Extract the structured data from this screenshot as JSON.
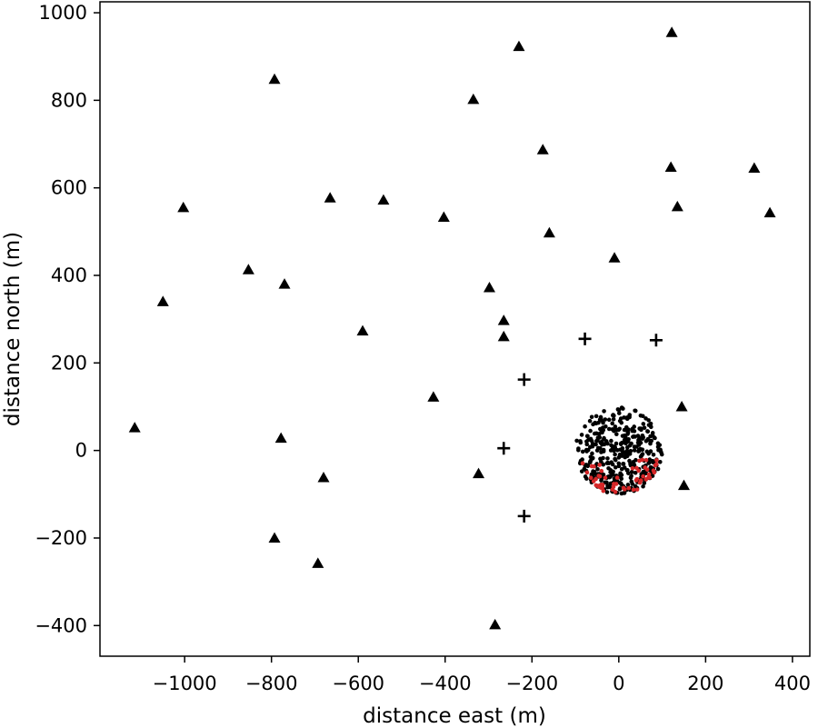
{
  "chart_data": {
    "type": "scatter",
    "title": "",
    "xlabel": "distance east (m)",
    "ylabel": "distance north (m)",
    "xlim": [
      -1195,
      440
    ],
    "ylim": [
      -470,
      1025
    ],
    "xticks": [
      -1000,
      -800,
      -600,
      -400,
      -200,
      0,
      200,
      400
    ],
    "yticks": [
      -400,
      -200,
      0,
      200,
      400,
      600,
      800,
      1000
    ],
    "xtick_labels": [
      "−1000",
      "−800",
      "−600",
      "−400",
      "−200",
      "0",
      "200",
      "400"
    ],
    "ytick_labels": [
      "−400",
      "−200",
      "0",
      "200",
      "400",
      "600",
      "800",
      "1000"
    ],
    "grid": false,
    "legend": "none",
    "colors": {
      "triangles": "#000000",
      "plus": "#000000",
      "dots_black": "#000000",
      "dots_red": "#d62728"
    },
    "series": [
      {
        "marker": "triangle",
        "points": [
          [
            -1115,
            52
          ],
          [
            -1050,
            340
          ],
          [
            -1003,
            555
          ],
          [
            -853,
            413
          ],
          [
            -793,
            848
          ],
          [
            -793,
            -200
          ],
          [
            -778,
            28
          ],
          [
            -770,
            380
          ],
          [
            -693,
            -258
          ],
          [
            -680,
            -62
          ],
          [
            -665,
            577
          ],
          [
            -590,
            273
          ],
          [
            -542,
            572
          ],
          [
            -427,
            122
          ],
          [
            -403,
            533
          ],
          [
            -335,
            802
          ],
          [
            -323,
            -53
          ],
          [
            -298,
            372
          ],
          [
            -285,
            -398
          ],
          [
            -265,
            297
          ],
          [
            -265,
            260
          ],
          [
            -230,
            923
          ],
          [
            -175,
            687
          ],
          [
            -160,
            497
          ],
          [
            -10,
            440
          ],
          [
            120,
            647
          ],
          [
            122,
            955
          ],
          [
            135,
            557
          ],
          [
            145,
            100
          ],
          [
            150,
            -80
          ],
          [
            312,
            645
          ],
          [
            348,
            543
          ]
        ]
      },
      {
        "marker": "plus",
        "points": [
          [
            -265,
            5
          ],
          [
            -218,
            162
          ],
          [
            -218,
            -150
          ],
          [
            -78,
            255
          ],
          [
            86,
            252
          ]
        ]
      },
      {
        "marker": "dot",
        "cluster": {
          "center": [
            0,
            0
          ],
          "radius": 100,
          "count_black": 400,
          "count_red": 55,
          "red_region": "southern rim"
        }
      }
    ]
  }
}
